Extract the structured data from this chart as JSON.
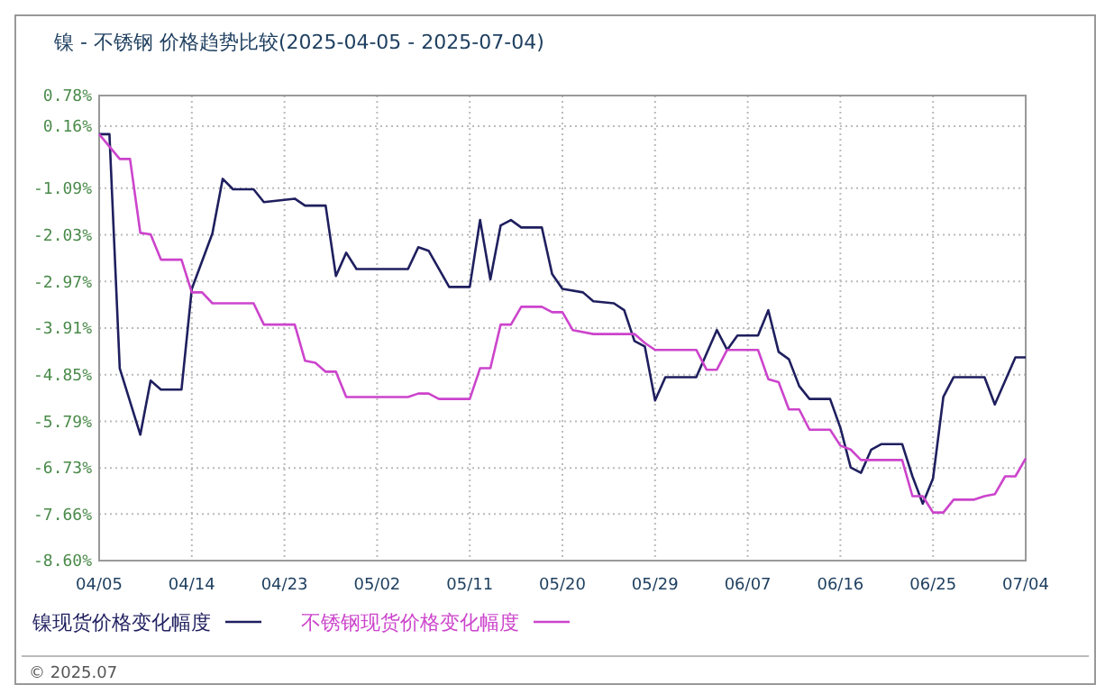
{
  "chart_data": {
    "type": "line",
    "title": "镍 - 不锈钢 价格趋势比较(2025-04-05 - 2025-07-04)",
    "xlim": [
      "2025-04-05",
      "2025-07-04"
    ],
    "xticks": [
      {
        "value": "2025-04-05",
        "label": "04/05"
      },
      {
        "value": "2025-04-14",
        "label": "04/14"
      },
      {
        "value": "2025-04-23",
        "label": "04/23"
      },
      {
        "value": "2025-05-02",
        "label": "05/02"
      },
      {
        "value": "2025-05-11",
        "label": "05/11"
      },
      {
        "value": "2025-05-20",
        "label": "05/20"
      },
      {
        "value": "2025-05-29",
        "label": "05/29"
      },
      {
        "value": "2025-06-07",
        "label": "06/07"
      },
      {
        "value": "2025-06-16",
        "label": "06/16"
      },
      {
        "value": "2025-06-25",
        "label": "06/25"
      },
      {
        "value": "2025-07-04",
        "label": "07/04"
      }
    ],
    "ylim": [
      -8.6,
      0.78
    ],
    "yticks": [
      {
        "value": 0.78,
        "label": "0.78%"
      },
      {
        "value": 0.16,
        "label": "0.16%"
      },
      {
        "value": -1.09,
        "label": "-1.09%"
      },
      {
        "value": -2.03,
        "label": "-2.03%"
      },
      {
        "value": -2.97,
        "label": "-2.97%"
      },
      {
        "value": -3.91,
        "label": "-3.91%"
      },
      {
        "value": -4.85,
        "label": "-4.85%"
      },
      {
        "value": -5.79,
        "label": "-5.79%"
      },
      {
        "value": -6.73,
        "label": "-6.73%"
      },
      {
        "value": -7.66,
        "label": "-7.66%"
      },
      {
        "value": -8.6,
        "label": "-8.60%"
      }
    ],
    "grid": true,
    "legend": "bottom",
    "line_style": "solid",
    "annotations": [
      "© 2025.07"
    ],
    "series": [
      {
        "name": "镍现货价格变化幅度",
        "color": "#1f1f5f",
        "x": [
          "2025-04-05",
          "2025-04-06",
          "2025-04-07",
          "2025-04-09",
          "2025-04-10",
          "2025-04-11",
          "2025-04-13",
          "2025-04-14",
          "2025-04-16",
          "2025-04-17",
          "2025-04-18",
          "2025-04-20",
          "2025-04-21",
          "2025-04-24",
          "2025-04-25",
          "2025-04-27",
          "2025-04-28",
          "2025-04-29",
          "2025-04-30",
          "2025-05-05",
          "2025-05-06",
          "2025-05-07",
          "2025-05-09",
          "2025-05-11",
          "2025-05-12",
          "2025-05-13",
          "2025-05-14",
          "2025-05-15",
          "2025-05-16",
          "2025-05-18",
          "2025-05-19",
          "2025-05-20",
          "2025-05-22",
          "2025-05-23",
          "2025-05-25",
          "2025-05-26",
          "2025-05-27",
          "2025-05-28",
          "2025-05-29",
          "2025-05-30",
          "2025-06-02",
          "2025-06-04",
          "2025-06-05",
          "2025-06-06",
          "2025-06-08",
          "2025-06-09",
          "2025-06-10",
          "2025-06-11",
          "2025-06-12",
          "2025-06-13",
          "2025-06-15",
          "2025-06-16",
          "2025-06-17",
          "2025-06-18",
          "2025-06-19",
          "2025-06-20",
          "2025-06-22",
          "2025-06-23",
          "2025-06-24",
          "2025-06-25",
          "2025-06-26",
          "2025-06-27",
          "2025-06-30",
          "2025-07-01",
          "2025-07-03",
          "2025-07-04"
        ],
        "values": [
          0,
          0,
          -4.72,
          -6.06,
          -4.97,
          -5.15,
          -5.15,
          -3.12,
          -2.0,
          -0.9,
          -1.11,
          -1.11,
          -1.37,
          -1.3,
          -1.44,
          -1.44,
          -2.86,
          -2.39,
          -2.72,
          -2.72,
          -2.28,
          -2.35,
          -3.08,
          -3.08,
          -1.73,
          -2.93,
          -1.84,
          -1.73,
          -1.88,
          -1.88,
          -2.82,
          -3.12,
          -3.19,
          -3.37,
          -3.41,
          -3.55,
          -4.17,
          -4.28,
          -5.37,
          -4.9,
          -4.9,
          -3.95,
          -4.35,
          -4.06,
          -4.06,
          -3.55,
          -4.39,
          -4.54,
          -5.08,
          -5.34,
          -5.34,
          -5.92,
          -6.72,
          -6.83,
          -6.36,
          -6.25,
          -6.25,
          -6.9,
          -7.45,
          -6.94,
          -5.3,
          -4.9,
          -4.9,
          -5.45,
          -4.5,
          -4.5
        ]
      },
      {
        "name": "不锈钢现货价格变化幅度",
        "color": "#cc44cc",
        "x": [
          "2025-04-05",
          "2025-04-07",
          "2025-04-08",
          "2025-04-09",
          "2025-04-10",
          "2025-04-11",
          "2025-04-13",
          "2025-04-14",
          "2025-04-15",
          "2025-04-16",
          "2025-04-20",
          "2025-04-21",
          "2025-04-24",
          "2025-04-25",
          "2025-04-26",
          "2025-04-27",
          "2025-04-28",
          "2025-04-29",
          "2025-05-05",
          "2025-05-06",
          "2025-05-07",
          "2025-05-08",
          "2025-05-11",
          "2025-05-12",
          "2025-05-13",
          "2025-05-14",
          "2025-05-15",
          "2025-05-16",
          "2025-05-18",
          "2025-05-19",
          "2025-05-20",
          "2025-05-21",
          "2025-05-23",
          "2025-05-27",
          "2025-05-28",
          "2025-05-29",
          "2025-06-02",
          "2025-06-03",
          "2025-06-04",
          "2025-06-05",
          "2025-06-08",
          "2025-06-09",
          "2025-06-10",
          "2025-06-11",
          "2025-06-12",
          "2025-06-13",
          "2025-06-15",
          "2025-06-16",
          "2025-06-17",
          "2025-06-18",
          "2025-06-22",
          "2025-06-23",
          "2025-06-24",
          "2025-06-25",
          "2025-06-26",
          "2025-06-27",
          "2025-06-29",
          "2025-06-30",
          "2025-07-01",
          "2025-07-02",
          "2025-07-03",
          "2025-07-04"
        ],
        "values": [
          0,
          -0.5,
          -0.5,
          -1.99,
          -2.02,
          -2.53,
          -2.53,
          -3.19,
          -3.19,
          -3.41,
          -3.41,
          -3.84,
          -3.84,
          -4.57,
          -4.61,
          -4.79,
          -4.79,
          -5.3,
          -5.3,
          -5.23,
          -5.23,
          -5.34,
          -5.34,
          -4.72,
          -4.72,
          -3.84,
          -3.84,
          -3.48,
          -3.48,
          -3.59,
          -3.59,
          -3.95,
          -4.03,
          -4.03,
          -4.21,
          -4.35,
          -4.35,
          -4.75,
          -4.75,
          -4.35,
          -4.35,
          -4.94,
          -5.0,
          -5.55,
          -5.55,
          -5.96,
          -5.96,
          -6.28,
          -6.36,
          -6.57,
          -6.57,
          -7.3,
          -7.3,
          -7.63,
          -7.63,
          -7.37,
          -7.37,
          -7.3,
          -7.26,
          -6.9,
          -6.9,
          -6.54
        ]
      }
    ]
  }
}
